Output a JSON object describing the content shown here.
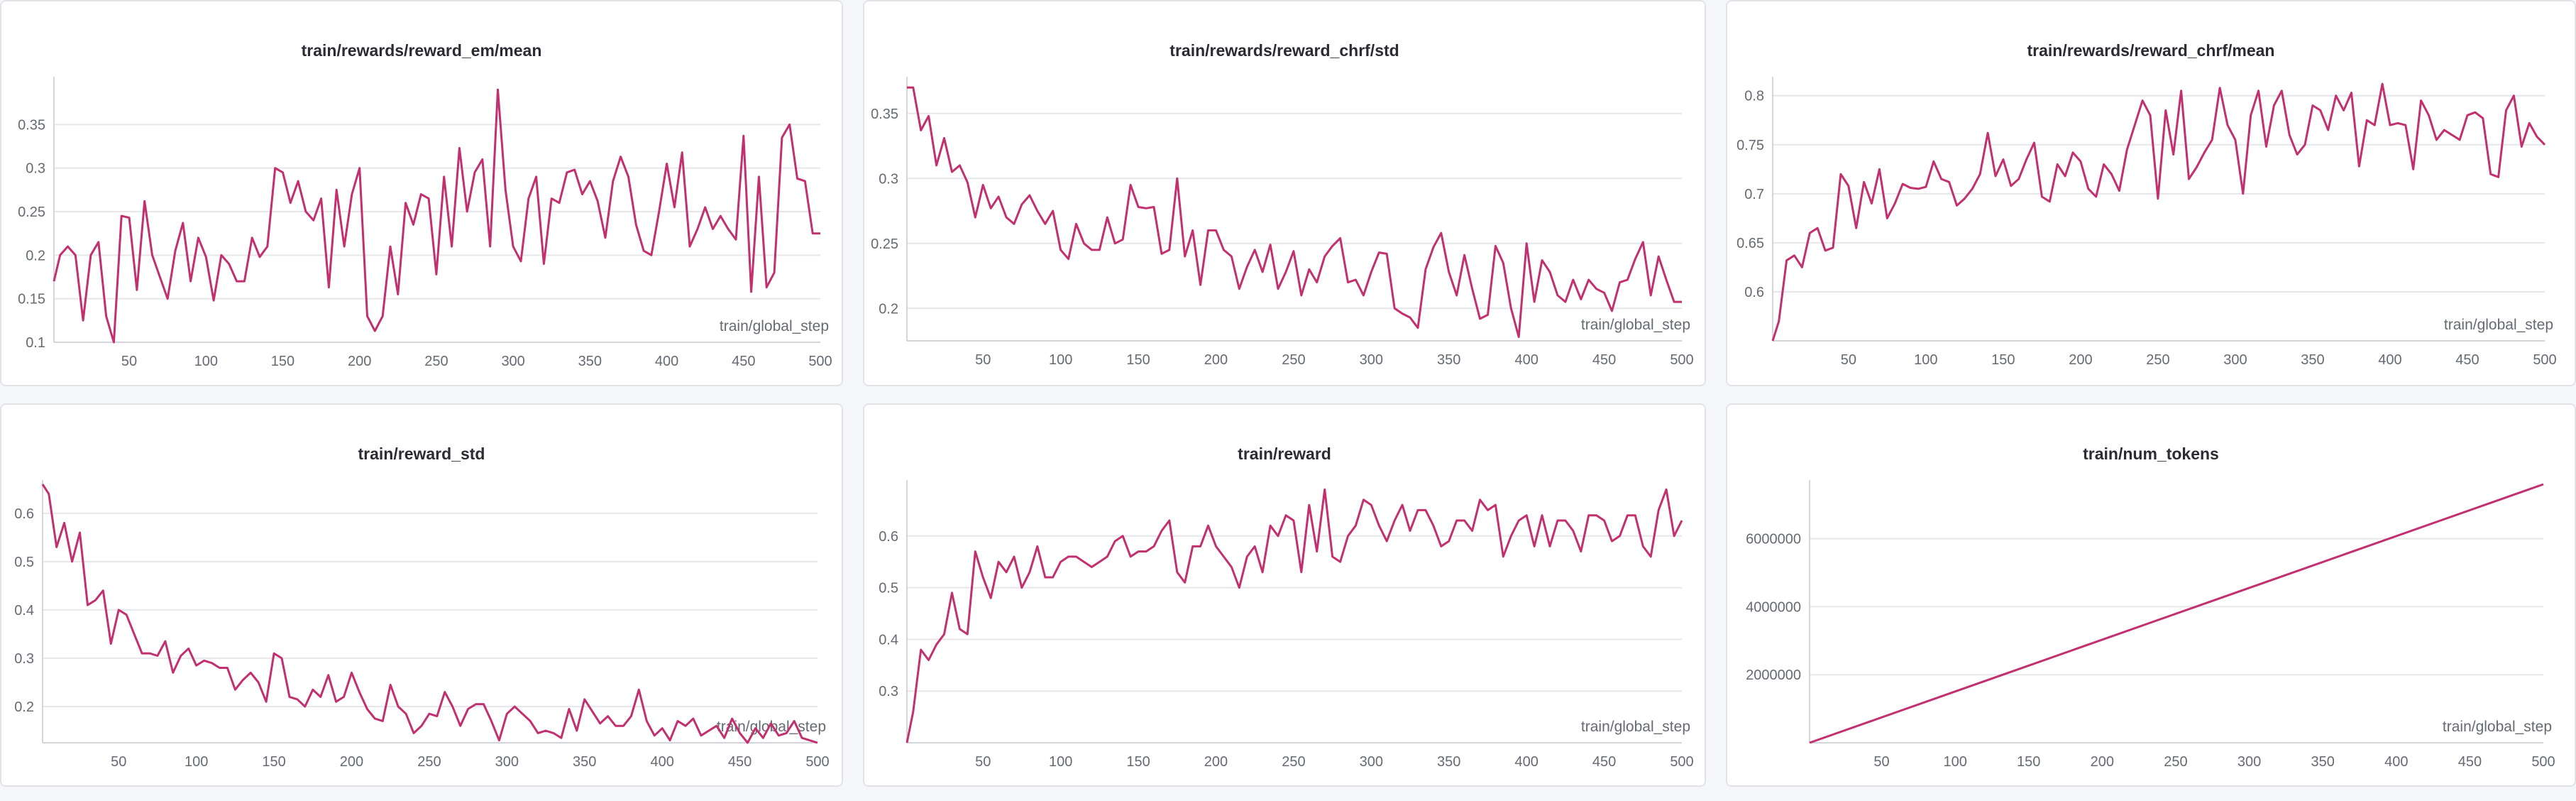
{
  "chart_data": [
    {
      "type": "line",
      "title": "train/rewards/reward_em/mean",
      "xlabel": "train/global_step",
      "xlim": [
        1,
        500
      ],
      "ylim": [
        0.1,
        0.4
      ],
      "xticks": [
        50,
        100,
        150,
        200,
        250,
        300,
        350,
        400,
        450,
        500
      ],
      "yticks": [
        0.1,
        0.15,
        0.2,
        0.25,
        0.3,
        0.35
      ],
      "ytick_labels": [
        "0.1",
        "0.15",
        "0.2",
        "0.25",
        "0.3",
        "0.35"
      ],
      "grid": true,
      "color": "#c2306f",
      "x": [
        1,
        5,
        10,
        15,
        20,
        25,
        30,
        35,
        40,
        45,
        50,
        55,
        60,
        65,
        70,
        75,
        80,
        85,
        90,
        95,
        100,
        105,
        110,
        115,
        120,
        125,
        130,
        135,
        140,
        145,
        150,
        155,
        160,
        165,
        170,
        175,
        180,
        185,
        190,
        195,
        200,
        205,
        210,
        215,
        220,
        225,
        230,
        235,
        240,
        245,
        250,
        255,
        260,
        265,
        270,
        275,
        280,
        285,
        290,
        295,
        300,
        305,
        310,
        315,
        320,
        325,
        330,
        335,
        340,
        345,
        350,
        355,
        360,
        365,
        370,
        375,
        380,
        385,
        390,
        395,
        400,
        405,
        410,
        415,
        420,
        425,
        430,
        435,
        440,
        445,
        450,
        455,
        460,
        465,
        470,
        475,
        480,
        485,
        490,
        495,
        500
      ],
      "y": [
        0.17,
        0.2,
        0.21,
        0.2,
        0.125,
        0.2,
        0.215,
        0.13,
        0.1,
        0.245,
        0.243,
        0.16,
        0.262,
        0.2,
        0.175,
        0.15,
        0.205,
        0.237,
        0.17,
        0.22,
        0.198,
        0.148,
        0.2,
        0.19,
        0.17,
        0.17,
        0.22,
        0.198,
        0.21,
        0.3,
        0.295,
        0.26,
        0.285,
        0.25,
        0.24,
        0.265,
        0.163,
        0.275,
        0.21,
        0.27,
        0.3,
        0.13,
        0.113,
        0.13,
        0.21,
        0.155,
        0.26,
        0.235,
        0.27,
        0.265,
        0.178,
        0.29,
        0.21,
        0.323,
        0.25,
        0.295,
        0.31,
        0.21,
        0.39,
        0.275,
        0.21,
        0.193,
        0.265,
        0.29,
        0.19,
        0.265,
        0.26,
        0.295,
        0.298,
        0.27,
        0.285,
        0.262,
        0.22,
        0.285,
        0.313,
        0.29,
        0.235,
        0.205,
        0.2,
        0.25,
        0.305,
        0.255,
        0.318,
        0.21,
        0.23,
        0.255,
        0.23,
        0.245,
        0.23,
        0.218,
        0.337,
        0.158,
        0.29,
        0.163,
        0.18,
        0.335,
        0.35,
        0.288,
        0.285,
        0.225,
        0.225
      ]
    },
    {
      "type": "line",
      "title": "train/rewards/reward_chrf/std",
      "xlabel": "train/global_step",
      "xlim": [
        1,
        500
      ],
      "ylim": [
        0.175,
        0.375
      ],
      "xticks": [
        50,
        100,
        150,
        200,
        250,
        300,
        350,
        400,
        450,
        500
      ],
      "yticks": [
        0.2,
        0.25,
        0.3,
        0.35
      ],
      "ytick_labels": [
        "0.2",
        "0.25",
        "0.3",
        "0.35"
      ],
      "grid": true,
      "color": "#c2306f",
      "x": [
        1,
        5,
        10,
        15,
        20,
        25,
        30,
        35,
        40,
        45,
        50,
        55,
        60,
        65,
        70,
        75,
        80,
        85,
        90,
        95,
        100,
        105,
        110,
        115,
        120,
        125,
        130,
        135,
        140,
        145,
        150,
        155,
        160,
        165,
        170,
        175,
        180,
        185,
        190,
        195,
        200,
        205,
        210,
        215,
        220,
        225,
        230,
        235,
        240,
        245,
        250,
        255,
        260,
        265,
        270,
        275,
        280,
        285,
        290,
        295,
        300,
        305,
        310,
        315,
        320,
        325,
        330,
        335,
        340,
        345,
        350,
        355,
        360,
        365,
        370,
        375,
        380,
        385,
        390,
        395,
        400,
        405,
        410,
        415,
        420,
        425,
        430,
        435,
        440,
        445,
        450,
        455,
        460,
        465,
        470,
        475,
        480,
        485,
        490,
        495,
        500
      ],
      "y": [
        0.37,
        0.37,
        0.337,
        0.348,
        0.31,
        0.331,
        0.305,
        0.31,
        0.297,
        0.27,
        0.295,
        0.277,
        0.286,
        0.27,
        0.265,
        0.28,
        0.287,
        0.275,
        0.265,
        0.275,
        0.245,
        0.238,
        0.265,
        0.25,
        0.245,
        0.245,
        0.27,
        0.25,
        0.253,
        0.295,
        0.278,
        0.277,
        0.278,
        0.242,
        0.245,
        0.3,
        0.24,
        0.26,
        0.218,
        0.26,
        0.26,
        0.245,
        0.24,
        0.215,
        0.232,
        0.245,
        0.228,
        0.249,
        0.215,
        0.228,
        0.244,
        0.21,
        0.23,
        0.22,
        0.24,
        0.248,
        0.254,
        0.22,
        0.222,
        0.21,
        0.228,
        0.243,
        0.242,
        0.2,
        0.196,
        0.193,
        0.185,
        0.23,
        0.247,
        0.258,
        0.228,
        0.21,
        0.241,
        0.215,
        0.192,
        0.195,
        0.248,
        0.235,
        0.2,
        0.178,
        0.25,
        0.205,
        0.237,
        0.228,
        0.21,
        0.205,
        0.222,
        0.207,
        0.222,
        0.215,
        0.212,
        0.198,
        0.22,
        0.222,
        0.238,
        0.251,
        0.21,
        0.24,
        0.222,
        0.205,
        0.205
      ]
    },
    {
      "type": "line",
      "title": "train/rewards/reward_chrf/mean",
      "xlabel": "train/global_step",
      "xlim": [
        1,
        500
      ],
      "ylim": [
        0.55,
        0.815
      ],
      "xticks": [
        50,
        100,
        150,
        200,
        250,
        300,
        350,
        400,
        450,
        500
      ],
      "yticks": [
        0.6,
        0.65,
        0.7,
        0.75,
        0.8
      ],
      "ytick_labels": [
        "0.6",
        "0.65",
        "0.7",
        "0.75",
        "0.8"
      ],
      "grid": true,
      "color": "#c2306f",
      "x": [
        1,
        5,
        10,
        15,
        20,
        25,
        30,
        35,
        40,
        45,
        50,
        55,
        60,
        65,
        70,
        75,
        80,
        85,
        90,
        95,
        100,
        105,
        110,
        115,
        120,
        125,
        130,
        135,
        140,
        145,
        150,
        155,
        160,
        165,
        170,
        175,
        180,
        185,
        190,
        195,
        200,
        205,
        210,
        215,
        220,
        225,
        230,
        235,
        240,
        245,
        250,
        255,
        260,
        265,
        270,
        275,
        280,
        285,
        290,
        295,
        300,
        305,
        310,
        315,
        320,
        325,
        330,
        335,
        340,
        345,
        350,
        355,
        360,
        365,
        370,
        375,
        380,
        385,
        390,
        395,
        400,
        405,
        410,
        415,
        420,
        425,
        430,
        435,
        440,
        445,
        450,
        455,
        460,
        465,
        470,
        475,
        480,
        485,
        490,
        495,
        500
      ],
      "y": [
        0.55,
        0.57,
        0.632,
        0.637,
        0.625,
        0.66,
        0.665,
        0.642,
        0.645,
        0.72,
        0.708,
        0.665,
        0.712,
        0.69,
        0.725,
        0.675,
        0.69,
        0.71,
        0.706,
        0.705,
        0.707,
        0.733,
        0.715,
        0.712,
        0.688,
        0.695,
        0.705,
        0.72,
        0.762,
        0.718,
        0.735,
        0.708,
        0.715,
        0.735,
        0.752,
        0.697,
        0.692,
        0.73,
        0.718,
        0.742,
        0.733,
        0.705,
        0.697,
        0.73,
        0.72,
        0.703,
        0.745,
        0.77,
        0.795,
        0.78,
        0.695,
        0.785,
        0.74,
        0.805,
        0.715,
        0.727,
        0.742,
        0.755,
        0.808,
        0.77,
        0.755,
        0.7,
        0.78,
        0.805,
        0.748,
        0.79,
        0.805,
        0.76,
        0.74,
        0.75,
        0.79,
        0.785,
        0.765,
        0.8,
        0.785,
        0.803,
        0.728,
        0.775,
        0.77,
        0.812,
        0.77,
        0.772,
        0.77,
        0.725,
        0.795,
        0.78,
        0.755,
        0.765,
        0.76,
        0.755,
        0.78,
        0.783,
        0.777,
        0.72,
        0.717,
        0.785,
        0.8,
        0.748,
        0.772,
        0.758,
        0.75
      ]
    },
    {
      "type": "line",
      "title": "train/reward_std",
      "xlabel": "train/global_step",
      "xlim": [
        1,
        500
      ],
      "ylim": [
        0.125,
        0.66
      ],
      "xticks": [
        50,
        100,
        150,
        200,
        250,
        300,
        350,
        400,
        450,
        500
      ],
      "yticks": [
        0.2,
        0.3,
        0.4,
        0.5,
        0.6
      ],
      "ytick_labels": [
        "0.2",
        "0.3",
        "0.4",
        "0.5",
        "0.6"
      ],
      "grid": true,
      "color": "#c2306f",
      "x": [
        1,
        5,
        10,
        15,
        20,
        25,
        30,
        35,
        40,
        45,
        50,
        55,
        60,
        65,
        70,
        75,
        80,
        85,
        90,
        95,
        100,
        105,
        110,
        115,
        120,
        125,
        130,
        135,
        140,
        145,
        150,
        155,
        160,
        165,
        170,
        175,
        180,
        185,
        190,
        195,
        200,
        205,
        210,
        215,
        220,
        225,
        230,
        235,
        240,
        245,
        250,
        255,
        260,
        265,
        270,
        275,
        280,
        285,
        290,
        295,
        300,
        305,
        310,
        315,
        320,
        325,
        330,
        335,
        340,
        345,
        350,
        355,
        360,
        365,
        370,
        375,
        380,
        385,
        390,
        395,
        400,
        405,
        410,
        415,
        420,
        425,
        430,
        435,
        440,
        445,
        450,
        455,
        460,
        465,
        470,
        475,
        480,
        485,
        490,
        495,
        500
      ],
      "y": [
        0.66,
        0.64,
        0.53,
        0.58,
        0.5,
        0.56,
        0.41,
        0.42,
        0.44,
        0.33,
        0.4,
        0.39,
        0.35,
        0.31,
        0.31,
        0.305,
        0.335,
        0.27,
        0.305,
        0.32,
        0.285,
        0.295,
        0.29,
        0.28,
        0.28,
        0.235,
        0.255,
        0.27,
        0.25,
        0.21,
        0.31,
        0.3,
        0.22,
        0.215,
        0.2,
        0.235,
        0.22,
        0.265,
        0.21,
        0.22,
        0.27,
        0.23,
        0.195,
        0.175,
        0.17,
        0.245,
        0.2,
        0.185,
        0.145,
        0.16,
        0.185,
        0.18,
        0.23,
        0.2,
        0.16,
        0.195,
        0.205,
        0.205,
        0.17,
        0.13,
        0.185,
        0.2,
        0.185,
        0.17,
        0.145,
        0.15,
        0.145,
        0.135,
        0.195,
        0.15,
        0.215,
        0.19,
        0.165,
        0.18,
        0.16,
        0.16,
        0.18,
        0.235,
        0.17,
        0.14,
        0.155,
        0.13,
        0.17,
        0.16,
        0.175,
        0.14,
        0.15,
        0.16,
        0.135,
        0.175,
        0.145,
        0.125,
        0.155,
        0.135,
        0.165,
        0.14,
        0.145,
        0.17,
        0.135,
        0.13,
        0.125
      ]
    },
    {
      "type": "line",
      "title": "train/reward",
      "xlabel": "train/global_step",
      "xlim": [
        1,
        500
      ],
      "ylim": [
        0.2,
        0.7
      ],
      "xticks": [
        50,
        100,
        150,
        200,
        250,
        300,
        350,
        400,
        450,
        500
      ],
      "yticks": [
        0.3,
        0.4,
        0.5,
        0.6
      ],
      "ytick_labels": [
        "0.3",
        "0.4",
        "0.5",
        "0.6"
      ],
      "grid": true,
      "color": "#c2306f",
      "x": [
        1,
        5,
        10,
        15,
        20,
        25,
        30,
        35,
        40,
        45,
        50,
        55,
        60,
        65,
        70,
        75,
        80,
        85,
        90,
        95,
        100,
        105,
        110,
        115,
        120,
        125,
        130,
        135,
        140,
        145,
        150,
        155,
        160,
        165,
        170,
        175,
        180,
        185,
        190,
        195,
        200,
        205,
        210,
        215,
        220,
        225,
        230,
        235,
        240,
        245,
        250,
        255,
        260,
        265,
        270,
        275,
        280,
        285,
        290,
        295,
        300,
        305,
        310,
        315,
        320,
        325,
        330,
        335,
        340,
        345,
        350,
        355,
        360,
        365,
        370,
        375,
        380,
        385,
        390,
        395,
        400,
        405,
        410,
        415,
        420,
        425,
        430,
        435,
        440,
        445,
        450,
        455,
        460,
        465,
        470,
        475,
        480,
        485,
        490,
        495,
        500
      ],
      "y": [
        0.2,
        0.26,
        0.38,
        0.36,
        0.39,
        0.41,
        0.49,
        0.42,
        0.41,
        0.57,
        0.52,
        0.48,
        0.55,
        0.53,
        0.56,
        0.5,
        0.53,
        0.58,
        0.52,
        0.52,
        0.55,
        0.56,
        0.56,
        0.55,
        0.54,
        0.55,
        0.56,
        0.59,
        0.6,
        0.56,
        0.57,
        0.57,
        0.58,
        0.61,
        0.63,
        0.53,
        0.51,
        0.58,
        0.58,
        0.62,
        0.58,
        0.56,
        0.54,
        0.5,
        0.56,
        0.58,
        0.53,
        0.62,
        0.6,
        0.64,
        0.63,
        0.53,
        0.66,
        0.57,
        0.69,
        0.56,
        0.55,
        0.6,
        0.62,
        0.67,
        0.66,
        0.62,
        0.59,
        0.63,
        0.66,
        0.61,
        0.65,
        0.65,
        0.62,
        0.58,
        0.59,
        0.63,
        0.63,
        0.61,
        0.67,
        0.65,
        0.66,
        0.56,
        0.6,
        0.63,
        0.64,
        0.58,
        0.64,
        0.58,
        0.63,
        0.63,
        0.61,
        0.57,
        0.64,
        0.64,
        0.63,
        0.59,
        0.6,
        0.64,
        0.64,
        0.58,
        0.56,
        0.65,
        0.69,
        0.6,
        0.63
      ]
    },
    {
      "type": "line",
      "title": "train/num_tokens",
      "xlabel": "train/global_step",
      "xlim": [
        1,
        500
      ],
      "ylim": [
        0,
        7600000
      ],
      "xticks": [
        50,
        100,
        150,
        200,
        250,
        300,
        350,
        400,
        450,
        500
      ],
      "yticks": [
        2000000,
        4000000,
        6000000
      ],
      "ytick_labels": [
        "2000000",
        "4000000",
        "6000000"
      ],
      "grid": true,
      "color": "#c2306f",
      "x": [
        1,
        500
      ],
      "y": [
        0,
        7600000
      ]
    }
  ]
}
